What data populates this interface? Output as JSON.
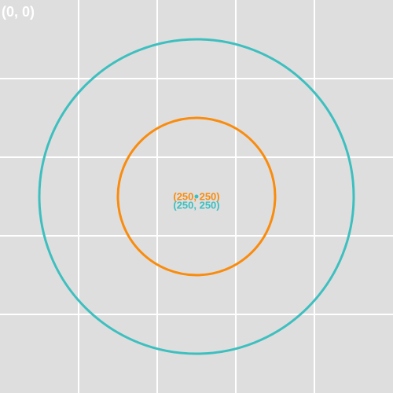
{
  "canvas": {
    "background": "#dedede",
    "grid_color": "#ffffff",
    "origin_label": "(0, 0)"
  },
  "circles": [
    {
      "id": "large",
      "color": "#3ebfbf",
      "center_label": "(250, 250)"
    },
    {
      "id": "small",
      "color": "#f98c0e",
      "center_label": "(250, 250)"
    }
  ]
}
